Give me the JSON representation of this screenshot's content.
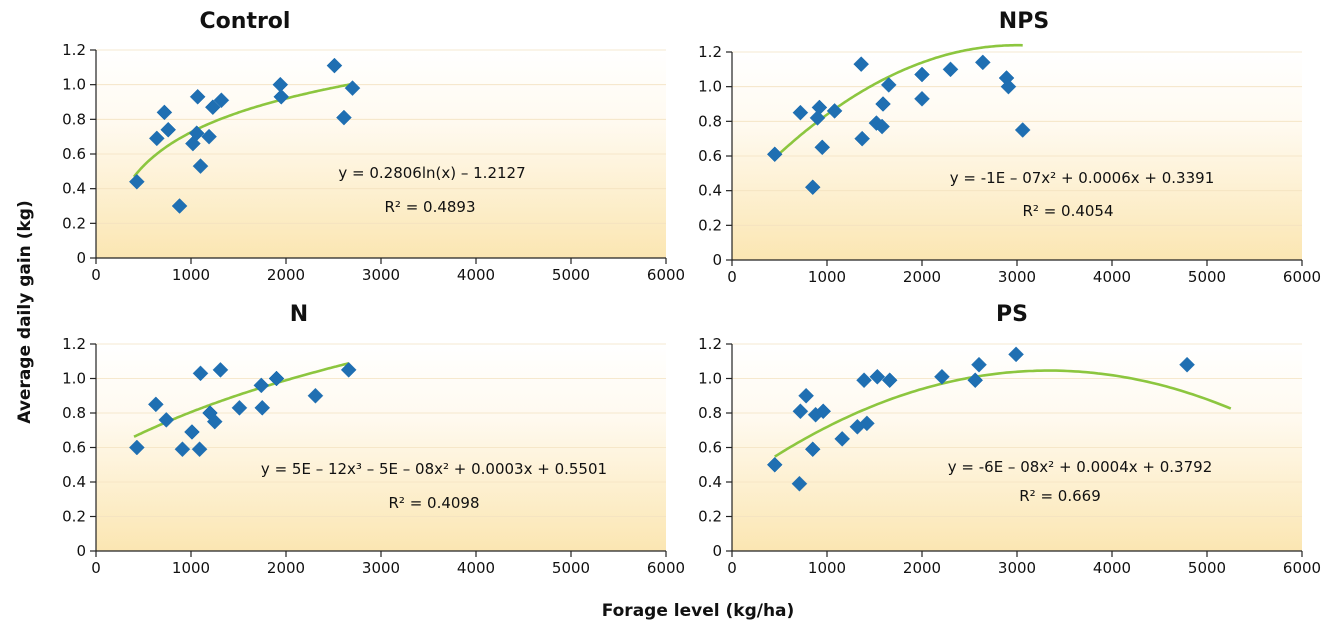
{
  "figure": {
    "ylabel": "Average daily gain (kg)",
    "xlabel": "Forage level (kg/ha)"
  },
  "chart_data": [
    {
      "type": "scatter",
      "title": "Control",
      "xlim": [
        0,
        6000
      ],
      "ylim": [
        0,
        1.2
      ],
      "x_ticks": [
        "0",
        "1000",
        "2000",
        "3000",
        "4000",
        "5000",
        "6000"
      ],
      "y_ticks": [
        "0",
        "0.2",
        "0.4",
        "0.6",
        "0.8",
        "1.0",
        "1.2"
      ],
      "points": [
        [
          430,
          0.44
        ],
        [
          640,
          0.69
        ],
        [
          720,
          0.84
        ],
        [
          760,
          0.74
        ],
        [
          880,
          0.3
        ],
        [
          1020,
          0.66
        ],
        [
          1060,
          0.72
        ],
        [
          1070,
          0.93
        ],
        [
          1100,
          0.53
        ],
        [
          1190,
          0.7
        ],
        [
          1230,
          0.87
        ],
        [
          1320,
          0.91
        ],
        [
          1940,
          1.0
        ],
        [
          1950,
          0.93
        ],
        [
          2510,
          1.11
        ],
        [
          2610,
          0.81
        ],
        [
          2700,
          0.98
        ]
      ],
      "trendline": {
        "type": "log",
        "a": 0.2806,
        "b": -1.2127,
        "x_range": [
          400,
          2680
        ]
      },
      "equation": "y = 0.2806ln(x) – 1.2127",
      "r2": "R² = 0.4893"
    },
    {
      "type": "scatter",
      "title": "NPS",
      "xlim": [
        0,
        6000
      ],
      "ylim": [
        0,
        1.2
      ],
      "x_ticks": [
        "0",
        "1000",
        "2000",
        "3000",
        "4000",
        "5000",
        "6000"
      ],
      "y_ticks": [
        "0",
        "0.2",
        "0.4",
        "0.6",
        "0.8",
        "1.0",
        "1.2"
      ],
      "points": [
        [
          450,
          0.61
        ],
        [
          720,
          0.85
        ],
        [
          850,
          0.42
        ],
        [
          900,
          0.82
        ],
        [
          920,
          0.88
        ],
        [
          950,
          0.65
        ],
        [
          1080,
          0.86
        ],
        [
          1360,
          1.13
        ],
        [
          1370,
          0.7
        ],
        [
          1520,
          0.79
        ],
        [
          1580,
          0.77
        ],
        [
          1590,
          0.9
        ],
        [
          1650,
          1.01
        ],
        [
          2000,
          1.07
        ],
        [
          2000,
          0.93
        ],
        [
          2300,
          1.1
        ],
        [
          2640,
          1.14
        ],
        [
          2890,
          1.05
        ],
        [
          2910,
          1.0
        ],
        [
          3060,
          0.75
        ]
      ],
      "trendline": {
        "type": "poly",
        "coeffs": [
          0.3391,
          0.0006,
          -1e-07
        ],
        "x_range": [
          450,
          3060
        ]
      },
      "equation": "y = -1E – 07x² + 0.0006x + 0.3391",
      "r2": "R² = 0.4054"
    },
    {
      "type": "scatter",
      "title": "N",
      "xlim": [
        0,
        6000
      ],
      "ylim": [
        0,
        1.2
      ],
      "x_ticks": [
        "0",
        "1000",
        "2000",
        "3000",
        "4000",
        "5000",
        "6000"
      ],
      "y_ticks": [
        "0",
        "0.2",
        "0.4",
        "0.6",
        "0.8",
        "1.0",
        "1.2"
      ],
      "points": [
        [
          430,
          0.6
        ],
        [
          630,
          0.85
        ],
        [
          740,
          0.76
        ],
        [
          910,
          0.59
        ],
        [
          1010,
          0.69
        ],
        [
          1090,
          0.59
        ],
        [
          1100,
          1.03
        ],
        [
          1200,
          0.8
        ],
        [
          1250,
          0.75
        ],
        [
          1310,
          1.05
        ],
        [
          1510,
          0.83
        ],
        [
          1740,
          0.96
        ],
        [
          1750,
          0.83
        ],
        [
          1900,
          1.0
        ],
        [
          2310,
          0.9
        ],
        [
          2660,
          1.05
        ]
      ],
      "trendline": {
        "type": "poly",
        "coeffs": [
          0.5501,
          0.0003,
          -5e-08,
          5e-12
        ],
        "x_range": [
          400,
          2660
        ]
      },
      "equation": "y = 5E – 12x³ – 5E – 08x² + 0.0003x + 0.5501",
      "r2": "R² = 0.4098"
    },
    {
      "type": "scatter",
      "title": "PS",
      "xlim": [
        0,
        6000
      ],
      "ylim": [
        0,
        1.2
      ],
      "x_ticks": [
        "0",
        "1000",
        "2000",
        "3000",
        "4000",
        "5000",
        "6000"
      ],
      "y_ticks": [
        "0",
        "0.2",
        "0.4",
        "0.6",
        "0.8",
        "1.0",
        "1.2"
      ],
      "points": [
        [
          450,
          0.5
        ],
        [
          710,
          0.39
        ],
        [
          720,
          0.81
        ],
        [
          780,
          0.9
        ],
        [
          850,
          0.59
        ],
        [
          880,
          0.79
        ],
        [
          960,
          0.81
        ],
        [
          1160,
          0.65
        ],
        [
          1320,
          0.72
        ],
        [
          1390,
          0.99
        ],
        [
          1420,
          0.74
        ],
        [
          1530,
          1.01
        ],
        [
          1660,
          0.99
        ],
        [
          2210,
          1.01
        ],
        [
          2560,
          0.99
        ],
        [
          2600,
          1.08
        ],
        [
          2990,
          1.14
        ],
        [
          4790,
          1.08
        ]
      ],
      "trendline": {
        "type": "poly",
        "coeffs": [
          0.3792,
          0.0004,
          -6e-08
        ],
        "x_range": [
          450,
          5250
        ]
      },
      "equation": "y = -6E – 08x² + 0.0004x + 0.3792",
      "r2": "R² = 0.669"
    }
  ]
}
